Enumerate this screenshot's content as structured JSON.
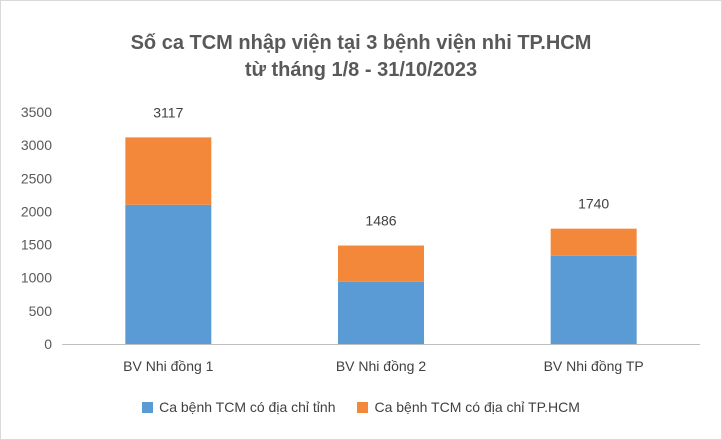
{
  "chart_data": {
    "type": "bar",
    "stacked": true,
    "title": [
      "Số ca TCM nhập viện tại 3 bệnh viện nhi TP.HCM",
      "từ tháng 1/8 - 31/10/2023"
    ],
    "categories": [
      "BV Nhi đồng 1",
      "BV Nhi đồng 2",
      "BV Nhi đồng TP"
    ],
    "series": [
      {
        "name": "Ca bệnh TCM có địa chỉ tỉnh",
        "color": "#5b9bd5",
        "values": [
          2100,
          940,
          1330
        ]
      },
      {
        "name": "Ca bệnh TCM có địa chỉ TP.HCM",
        "color": "#f4883a",
        "values": [
          1017,
          546,
          410
        ]
      }
    ],
    "totals": [
      3117,
      1486,
      1740
    ],
    "ylim": [
      0,
      3500
    ],
    "yticks": [
      0,
      500,
      1000,
      1500,
      2000,
      2500,
      3000,
      3500
    ],
    "grid": false,
    "legend_position": "bottom"
  }
}
